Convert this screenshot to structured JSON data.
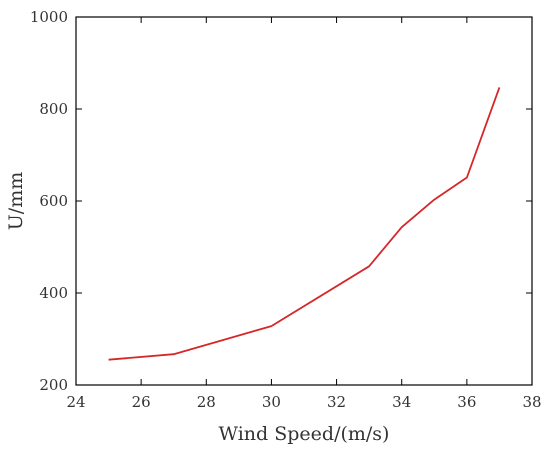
{
  "chart_data": {
    "type": "line",
    "title": "",
    "xlabel": "Wind Speed/(m/s)",
    "ylabel": "U/mm",
    "xlim": [
      24,
      38
    ],
    "ylim": [
      200,
      1000
    ],
    "xticks": [
      24,
      26,
      28,
      30,
      32,
      34,
      36,
      38
    ],
    "yticks": [
      200,
      400,
      600,
      800,
      1000
    ],
    "grid": false,
    "legend": "none",
    "series": [
      {
        "color": "#d62728",
        "x": [
          25,
          27,
          30,
          33,
          34,
          35,
          36,
          37
        ],
        "y": [
          255,
          267,
          328,
          458,
          543,
          603,
          651,
          847
        ]
      }
    ]
  }
}
